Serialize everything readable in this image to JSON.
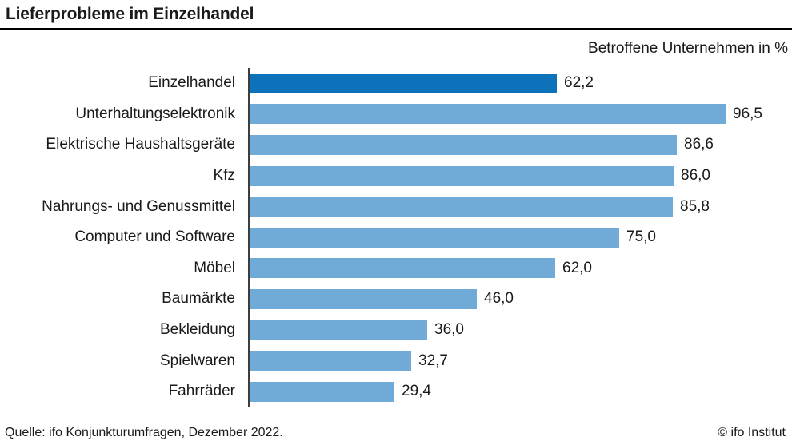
{
  "header": {
    "title": "Lieferprobleme im Einzelhandel",
    "subtitle": "Betroffene Unternehmen in %"
  },
  "footer": {
    "source": "Quelle: ifo Konjunkturumfragen, Dezember 2022.",
    "copyright": "© ifo Institut"
  },
  "colors": {
    "bar": "#6fabd6",
    "bar_highlight": "#0d72b9",
    "axis": "#3d3d3d"
  },
  "chart_data": {
    "type": "bar",
    "orientation": "horizontal",
    "title": "Lieferprobleme im Einzelhandel",
    "value_axis_label": "Betroffene Unternehmen in %",
    "xlim": [
      0,
      100
    ],
    "grid": false,
    "legend": false,
    "highlight_index": 0,
    "categories": [
      "Einzelhandel",
      "Unterhaltungselektronik",
      "Elektrische Haushaltsgeräte",
      "Kfz",
      "Nahrungs- und Genussmittel",
      "Computer und Software",
      "Möbel",
      "Baumärkte",
      "Bekleidung",
      "Spielwaren",
      "Fahrräder"
    ],
    "values": [
      62.2,
      96.5,
      86.6,
      86.0,
      85.8,
      75.0,
      62.0,
      46.0,
      36.0,
      32.7,
      29.4
    ],
    "value_labels": [
      "62,2",
      "96,5",
      "86,6",
      "86,0",
      "85,8",
      "75,0",
      "62,0",
      "46,0",
      "36,0",
      "32,7",
      "29,4"
    ]
  }
}
